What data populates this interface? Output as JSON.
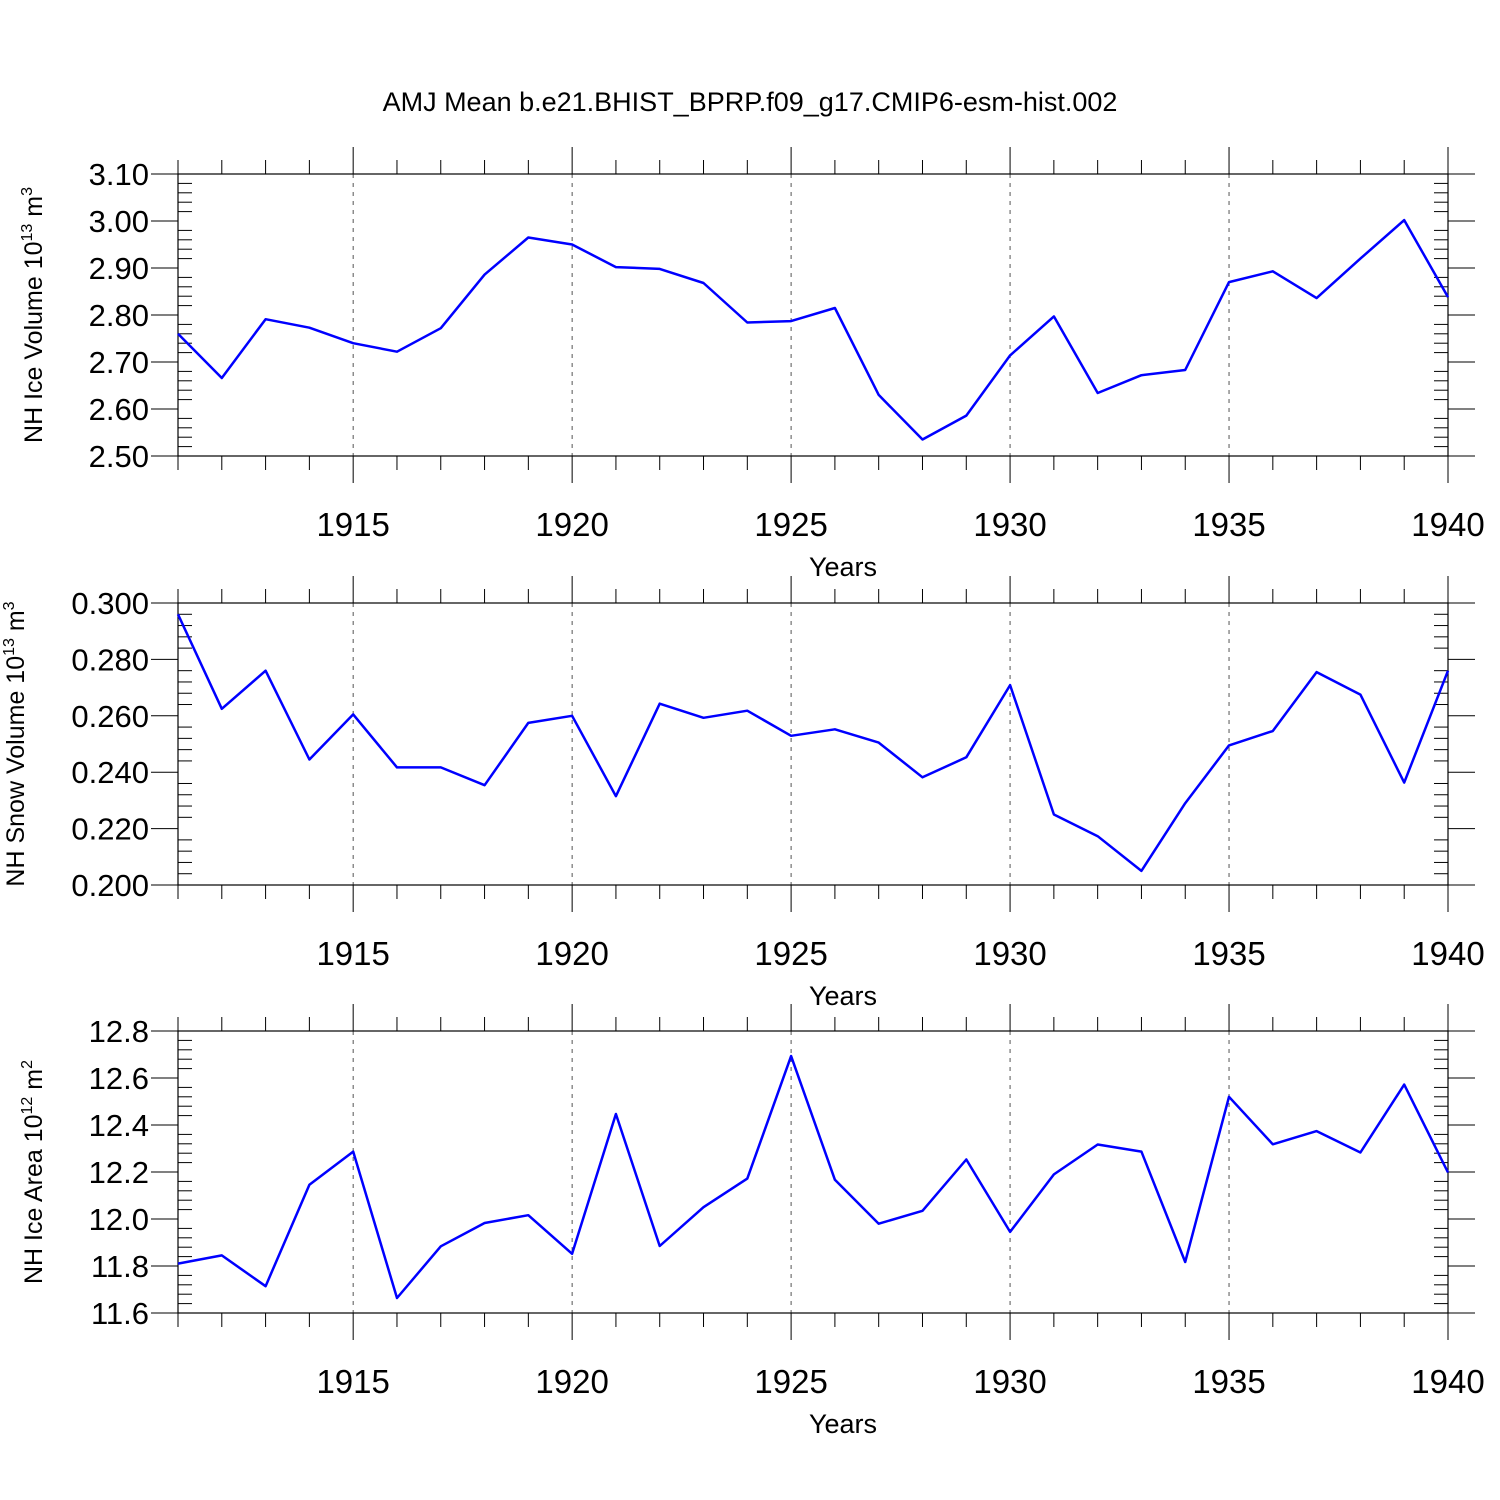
{
  "title": "AMJ Mean b.e21.BHIST_BPRP.f09_g17.CMIP6-esm-hist.002",
  "line_color": "#0000ff",
  "chart_data": [
    {
      "type": "line",
      "xlabel": "Years",
      "ylabel": "NH Ice Volume 10",
      "ylabel_exp": "13",
      "ylabel_unit": " m",
      "ylabel_unit_exp": "3",
      "xlim": [
        1911,
        1940
      ],
      "ylim": [
        2.5,
        3.1
      ],
      "xticks": [
        1915,
        1920,
        1925,
        1930,
        1935,
        1940
      ],
      "xtick_labels": [
        "1915",
        "1920",
        "1925",
        "1930",
        "1935",
        "1940"
      ],
      "yticks": [
        2.5,
        2.6,
        2.7,
        2.8,
        2.9,
        3.0,
        3.1
      ],
      "ytick_labels": [
        "2.50",
        "2.60",
        "2.70",
        "2.80",
        "2.90",
        "3.00",
        "3.10"
      ],
      "y_minor_step": 0.02,
      "grid": "vertical dashed at major x ticks",
      "x": [
        1911,
        1912,
        1913,
        1914,
        1915,
        1916,
        1917,
        1918,
        1919,
        1920,
        1921,
        1922,
        1923,
        1924,
        1925,
        1926,
        1927,
        1928,
        1929,
        1930,
        1931,
        1932,
        1933,
        1934,
        1935,
        1936,
        1937,
        1938,
        1939,
        1940
      ],
      "values": [
        2.76,
        2.666,
        2.791,
        2.773,
        2.74,
        2.722,
        2.772,
        2.886,
        2.965,
        2.95,
        2.902,
        2.898,
        2.868,
        2.784,
        2.787,
        2.815,
        2.63,
        2.535,
        2.586,
        2.714,
        2.797,
        2.634,
        2.672,
        2.683,
        2.87,
        2.893,
        2.836,
        2.92,
        3.002,
        2.838
      ]
    },
    {
      "type": "line",
      "xlabel": "Years",
      "ylabel": "NH Snow Volume 10",
      "ylabel_exp": "13",
      "ylabel_unit": " m",
      "ylabel_unit_exp": "3",
      "xlim": [
        1911,
        1940
      ],
      "ylim": [
        0.2,
        0.3
      ],
      "xticks": [
        1915,
        1920,
        1925,
        1930,
        1935,
        1940
      ],
      "xtick_labels": [
        "1915",
        "1920",
        "1925",
        "1930",
        "1935",
        "1940"
      ],
      "yticks": [
        0.2,
        0.22,
        0.24,
        0.26,
        0.28,
        0.3
      ],
      "ytick_labels": [
        "0.200",
        "0.220",
        "0.240",
        "0.260",
        "0.280",
        "0.300"
      ],
      "y_minor_step": 0.004,
      "grid": "vertical dashed at major x ticks",
      "x": [
        1911,
        1912,
        1913,
        1914,
        1915,
        1916,
        1917,
        1918,
        1919,
        1920,
        1921,
        1922,
        1923,
        1924,
        1925,
        1926,
        1927,
        1928,
        1929,
        1930,
        1931,
        1932,
        1933,
        1934,
        1935,
        1936,
        1937,
        1938,
        1939,
        1940
      ],
      "values": [
        0.296,
        0.2625,
        0.276,
        0.2445,
        0.2605,
        0.2417,
        0.2417,
        0.2354,
        0.2575,
        0.26,
        0.2315,
        0.2643,
        0.2593,
        0.2618,
        0.2529,
        0.2552,
        0.2505,
        0.2382,
        0.2453,
        0.2709,
        0.225,
        0.2173,
        0.205,
        0.229,
        0.2495,
        0.2546,
        0.2755,
        0.2675,
        0.2363,
        0.276
      ]
    },
    {
      "type": "line",
      "xlabel": "Years",
      "ylabel": "NH Ice Area 10",
      "ylabel_exp": "12",
      "ylabel_unit": " m",
      "ylabel_unit_exp": "2",
      "xlim": [
        1911,
        1940
      ],
      "ylim": [
        11.6,
        12.8
      ],
      "xticks": [
        1915,
        1920,
        1925,
        1930,
        1935,
        1940
      ],
      "xtick_labels": [
        "1915",
        "1920",
        "1925",
        "1930",
        "1935",
        "1940"
      ],
      "yticks": [
        11.6,
        11.8,
        12.0,
        12.2,
        12.4,
        12.6,
        12.8
      ],
      "ytick_labels": [
        "11.6",
        "11.8",
        "12.0",
        "12.2",
        "12.4",
        "12.6",
        "12.8"
      ],
      "y_minor_step": 0.04,
      "grid": "vertical dashed at major x ticks",
      "x": [
        1911,
        1912,
        1913,
        1914,
        1915,
        1916,
        1917,
        1918,
        1919,
        1920,
        1921,
        1922,
        1923,
        1924,
        1925,
        1926,
        1927,
        1928,
        1929,
        1930,
        1931,
        1932,
        1933,
        1934,
        1935,
        1936,
        1937,
        1938,
        1939,
        1940
      ],
      "values": [
        11.81,
        11.845,
        11.714,
        12.146,
        12.287,
        11.664,
        11.884,
        11.983,
        12.016,
        11.852,
        12.447,
        11.885,
        12.05,
        12.172,
        12.693,
        12.167,
        11.98,
        12.035,
        12.253,
        11.945,
        12.19,
        12.317,
        12.287,
        11.817,
        12.52,
        12.318,
        12.374,
        12.283,
        12.572,
        12.198
      ]
    }
  ]
}
